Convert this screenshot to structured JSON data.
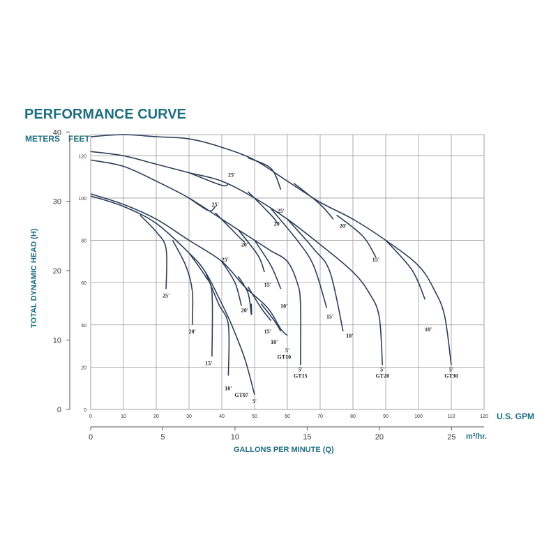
{
  "chart_data": {
    "type": "line",
    "title": "PERFORMANCE CURVE",
    "y_left_unit": "METERS",
    "y_right_unit": "FEET",
    "ylabel": "TOTAL DYNAMIC HEAD (H)",
    "x_top_unit": "U.S. GPM",
    "x_bottom_unit": "m³/hr.",
    "xlabel": "GALLONS PER MINUTE (Q)",
    "x_gpm_range": [
      0,
      120
    ],
    "x_gpm_ticks": [
      "0",
      "10",
      "20",
      "30",
      "40",
      "50",
      "60",
      "70",
      "80",
      "90",
      "100",
      "110",
      "120"
    ],
    "x_m3h_ticks": [
      "0",
      "5",
      "10",
      "15",
      "20",
      "25"
    ],
    "x_m3h_values": [
      0,
      5,
      10,
      15,
      20,
      25
    ],
    "y_feet_range": [
      0,
      130
    ],
    "y_feet_ticks": [
      "0",
      "20",
      "40",
      "60",
      "80",
      "100",
      "120"
    ],
    "y_meter_ticks": [
      "0",
      "10",
      "20",
      "30",
      "40"
    ],
    "y_meter_values": [
      0,
      10,
      20,
      30,
      40
    ],
    "grid": true,
    "series": [
      {
        "name": "GT07",
        "points": [
          [
            0,
            101
          ],
          [
            10,
            96
          ],
          [
            20,
            88
          ],
          [
            30,
            74
          ],
          [
            35,
            65
          ],
          [
            40,
            50
          ],
          [
            43,
            40
          ],
          [
            47,
            24
          ],
          [
            50,
            7
          ]
        ],
        "branches": [
          {
            "label": "25'",
            "points": [
              [
                15,
                92
              ],
              [
                20,
                84
              ],
              [
                23,
                76
              ],
              [
                23,
                57
              ]
            ]
          },
          {
            "label": "20'",
            "points": [
              [
                25,
                80
              ],
              [
                29,
                68
              ],
              [
                31,
                56
              ],
              [
                31,
                40
              ]
            ]
          },
          {
            "label": "15'",
            "points": [
              [
                30,
                74
              ],
              [
                35,
                63
              ],
              [
                37,
                55
              ],
              [
                37,
                25
              ]
            ]
          },
          {
            "label": "10'",
            "points": [
              [
                35,
                65
              ],
              [
                39,
                50
              ],
              [
                42,
                40
              ],
              [
                42,
                16
              ]
            ]
          }
        ],
        "end_label": "5'"
      },
      {
        "name": "GT10",
        "points": [
          [
            0,
            102
          ],
          [
            10,
            97
          ],
          [
            20,
            90
          ],
          [
            30,
            80
          ],
          [
            40,
            70
          ],
          [
            47,
            58
          ],
          [
            54,
            48
          ],
          [
            58,
            38
          ],
          [
            60,
            35
          ]
        ],
        "branches": [
          {
            "label": "25'",
            "points": [
              [
                40,
                70
              ],
              [
                44,
                60
              ],
              [
                46,
                49
              ]
            ]
          },
          {
            "label": "20'",
            "points": [
              [
                45,
                63
              ],
              [
                48,
                55
              ],
              [
                49,
                45
              ],
              [
                49,
                50
              ]
            ]
          },
          {
            "label": "15'",
            "points": [
              [
                48,
                58
              ],
              [
                52,
                48
              ],
              [
                55,
                42
              ]
            ]
          },
          {
            "label": "10'",
            "points": [
              [
                52,
                50
              ],
              [
                56,
                42
              ],
              [
                58,
                37
              ]
            ]
          }
        ],
        "end_label": "5'"
      },
      {
        "name": "GT15",
        "points": [
          [
            0,
            118
          ],
          [
            10,
            115
          ],
          [
            20,
            108
          ],
          [
            30,
            100
          ],
          [
            40,
            90
          ],
          [
            45,
            85
          ],
          [
            50,
            80
          ],
          [
            55,
            75
          ],
          [
            60,
            70
          ],
          [
            63,
            60
          ],
          [
            64,
            50
          ],
          [
            64,
            21
          ]
        ],
        "branches": [
          {
            "label": "25'",
            "points": [
              [
                30,
                100
              ],
              [
                36,
                94
              ],
              [
                38,
                96
              ]
            ]
          },
          {
            "label": "20'",
            "points": [
              [
                38,
                93
              ],
              [
                45,
                82
              ],
              [
                47,
                79
              ]
            ]
          },
          {
            "label": "15'",
            "points": [
              [
                45,
                85
              ],
              [
                51,
                73
              ],
              [
                53,
                65
              ]
            ]
          },
          {
            "label": "10'",
            "points": [
              [
                50,
                80
              ],
              [
                55,
                68
              ],
              [
                58,
                57
              ]
            ]
          }
        ],
        "end_label": "5'"
      },
      {
        "name": "GT20",
        "points": [
          [
            0,
            122
          ],
          [
            10,
            120
          ],
          [
            20,
            116
          ],
          [
            30,
            112
          ],
          [
            40,
            108
          ],
          [
            50,
            100
          ],
          [
            60,
            90
          ],
          [
            70,
            78
          ],
          [
            80,
            65
          ],
          [
            85,
            55
          ],
          [
            88,
            44
          ],
          [
            89,
            21
          ]
        ],
        "branches": [
          {
            "label": "25'",
            "points": [
              [
                30,
                112
              ],
              [
                40,
                106
              ],
              [
                42,
                107
              ]
            ]
          },
          {
            "label": "20'",
            "points": [
              [
                48,
                103
              ],
              [
                55,
                92
              ],
              [
                57,
                88
              ]
            ]
          },
          {
            "label": "15'",
            "points": [
              [
                55,
                95
              ],
              [
                63,
                80
              ],
              [
                68,
                68
              ],
              [
                72,
                48
              ]
            ]
          },
          {
            "label": "10'",
            "points": [
              [
                60,
                90
              ],
              [
                68,
                76
              ],
              [
                73,
                65
              ],
              [
                77,
                37
              ]
            ]
          }
        ],
        "end_label": "5'"
      },
      {
        "name": "GT30",
        "points": [
          [
            0,
            129
          ],
          [
            10,
            130
          ],
          [
            20,
            129
          ],
          [
            30,
            128
          ],
          [
            40,
            124
          ],
          [
            50,
            118
          ],
          [
            60,
            108
          ],
          [
            70,
            98
          ],
          [
            80,
            90
          ],
          [
            90,
            80
          ],
          [
            100,
            68
          ],
          [
            105,
            56
          ],
          [
            108,
            44
          ],
          [
            110,
            21
          ]
        ],
        "branches": [
          {
            "label": "25'",
            "points": [
              [
                48,
                119
              ],
              [
                55,
                114
              ],
              [
                58,
                104
              ]
            ]
          },
          {
            "label": "20'",
            "points": [
              [
                62,
                107
              ],
              [
                70,
                97
              ],
              [
                74,
                90
              ]
            ]
          },
          {
            "label": "15'",
            "points": [
              [
                75,
                92
              ],
              [
                83,
                82
              ],
              [
                87,
                72
              ]
            ]
          },
          {
            "label": "10'",
            "points": [
              [
                90,
                80
              ],
              [
                98,
                66
              ],
              [
                102,
                52
              ]
            ]
          }
        ],
        "end_label": "5'"
      }
    ],
    "curve_labels": [
      {
        "text": "25'",
        "x": 43,
        "y": 110
      },
      {
        "text": "25'",
        "x": 38,
        "y": 96
      },
      {
        "text": "25'",
        "x": 58,
        "y": 93
      },
      {
        "text": "20'",
        "x": 57,
        "y": 87
      },
      {
        "text": "20'",
        "x": 77,
        "y": 86
      },
      {
        "text": "20'",
        "x": 47,
        "y": 77
      },
      {
        "text": "25'",
        "x": 41,
        "y": 70
      },
      {
        "text": "15'",
        "x": 87,
        "y": 70
      },
      {
        "text": "15'",
        "x": 54,
        "y": 58
      },
      {
        "text": "10'",
        "x": 59,
        "y": 48
      },
      {
        "text": "20'",
        "x": 47,
        "y": 46
      },
      {
        "text": "25'",
        "x": 23,
        "y": 53
      },
      {
        "text": "15'",
        "x": 73,
        "y": 43
      },
      {
        "text": "20'",
        "x": 31,
        "y": 36
      },
      {
        "text": "15'",
        "x": 54,
        "y": 36
      },
      {
        "text": "10'",
        "x": 56,
        "y": 31
      },
      {
        "text": "10'",
        "x": 79,
        "y": 34
      },
      {
        "text": "10'",
        "x": 103,
        "y": 37
      },
      {
        "text": "15'",
        "x": 36,
        "y": 21
      },
      {
        "text": "5'",
        "x": 60,
        "y": 27
      },
      {
        "text": "GT10",
        "x": 59,
        "y": 24
      },
      {
        "text": "5'",
        "x": 64,
        "y": 18
      },
      {
        "text": "GT15",
        "x": 64,
        "y": 15
      },
      {
        "text": "5'",
        "x": 89,
        "y": 18
      },
      {
        "text": "GT20",
        "x": 89,
        "y": 15
      },
      {
        "text": "5'",
        "x": 110,
        "y": 18
      },
      {
        "text": "GT30",
        "x": 110,
        "y": 15
      },
      {
        "text": "10'",
        "x": 42,
        "y": 9
      },
      {
        "text": "GT07",
        "x": 46,
        "y": 6
      },
      {
        "text": "5'",
        "x": 50,
        "y": 3
      }
    ]
  }
}
